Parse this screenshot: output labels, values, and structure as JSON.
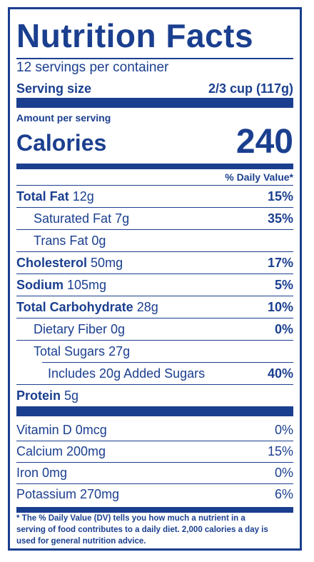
{
  "title": "Nutrition Facts",
  "servings_per_container": "12 servings per container",
  "serving_size_label": "Serving size",
  "serving_size_value": "2/3 cup (117g)",
  "amount_per_serving": "Amount per serving",
  "calories_label": "Calories",
  "calories_value": "240",
  "daily_value_header": "% Daily Value*",
  "rows": [
    {
      "label": "Total Fat",
      "amount": "12g",
      "dv": "15%"
    },
    {
      "label": "Saturated Fat",
      "amount": "7g",
      "dv": "35%"
    },
    {
      "label": "Trans Fat",
      "amount": "0g",
      "dv": ""
    },
    {
      "label": "Cholesterol",
      "amount": "50mg",
      "dv": "17%"
    },
    {
      "label": "Sodium",
      "amount": "105mg",
      "dv": "5%"
    },
    {
      "label": "Total Carbohydrate",
      "amount": "28g",
      "dv": "10%"
    },
    {
      "label": "Dietary Fiber",
      "amount": "0g",
      "dv": "0%"
    },
    {
      "label": "Total Sugars",
      "amount": "27g",
      "dv": ""
    },
    {
      "label": "Includes 20g Added Sugars",
      "amount": "",
      "dv": "40%"
    },
    {
      "label": "Protein",
      "amount": "5g",
      "dv": ""
    }
  ],
  "vitamins": [
    {
      "label": "Vitamin D 0mcg",
      "dv": "0%"
    },
    {
      "label": "Calcium 200mg",
      "dv": "15%"
    },
    {
      "label": "Iron 0mg",
      "dv": "0%"
    },
    {
      "label": "Potassium 270mg",
      "dv": "6%"
    }
  ],
  "footnote_1": "* The % Daily Value (DV) tells you how much a nutrient in a",
  "footnote_2": "serving of food contributes to a daily diet. 2,000 calories a day is",
  "footnote_3": "used for general nutrition advice.",
  "colors": {
    "ink": "#1b3f8f",
    "background": "#ffffff"
  }
}
